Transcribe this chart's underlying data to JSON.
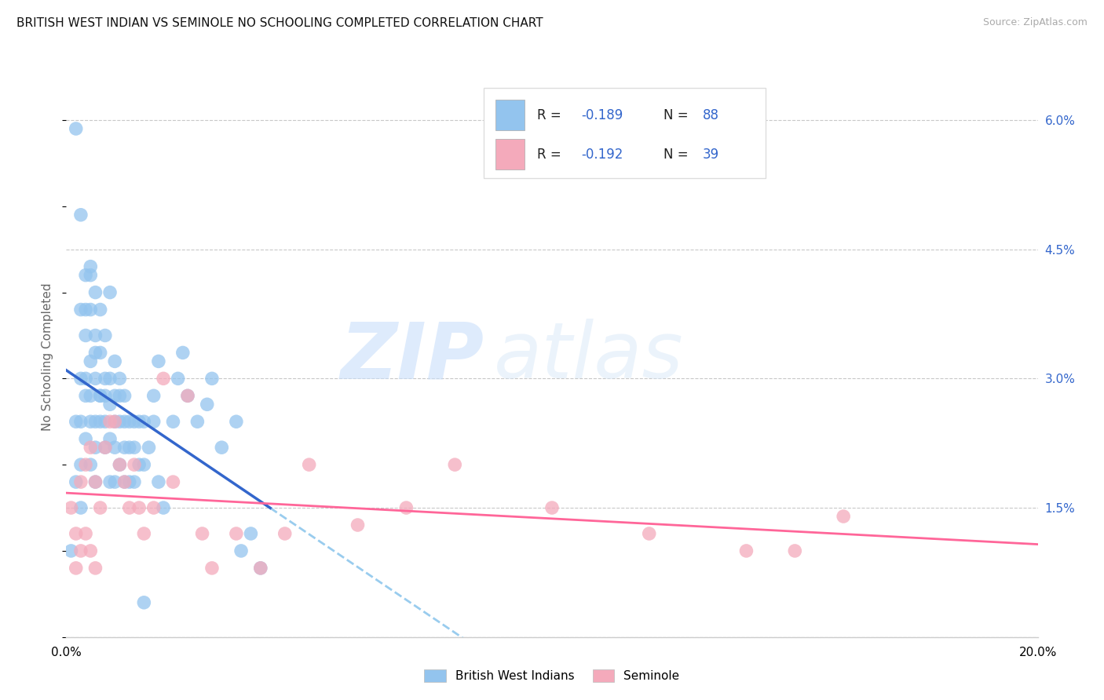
{
  "title": "BRITISH WEST INDIAN VS SEMINOLE NO SCHOOLING COMPLETED CORRELATION CHART",
  "source": "Source: ZipAtlas.com",
  "ylabel": "No Schooling Completed",
  "xlim": [
    0.0,
    0.2
  ],
  "ylim": [
    0.0,
    0.065
  ],
  "yticks_right": [
    0.0,
    0.015,
    0.03,
    0.045,
    0.06
  ],
  "yticklabels_right": [
    "",
    "1.5%",
    "3.0%",
    "4.5%",
    "6.0%"
  ],
  "grid_color": "#c8c8c8",
  "background_color": "#ffffff",
  "blue_color": "#93C4EE",
  "pink_color": "#F4AABB",
  "blue_line_color": "#3366CC",
  "pink_line_color": "#FF6699",
  "dashed_line_color": "#99CCEE",
  "legend_label1": "British West Indians",
  "legend_label2": "Seminole",
  "watermark_zip": "ZIP",
  "watermark_atlas": "atlas",
  "blue_x": [
    0.001,
    0.002,
    0.002,
    0.003,
    0.003,
    0.003,
    0.003,
    0.003,
    0.004,
    0.004,
    0.004,
    0.004,
    0.004,
    0.004,
    0.005,
    0.005,
    0.005,
    0.005,
    0.005,
    0.005,
    0.006,
    0.006,
    0.006,
    0.006,
    0.006,
    0.006,
    0.007,
    0.007,
    0.007,
    0.007,
    0.008,
    0.008,
    0.008,
    0.008,
    0.008,
    0.009,
    0.009,
    0.009,
    0.009,
    0.01,
    0.01,
    0.01,
    0.01,
    0.01,
    0.011,
    0.011,
    0.011,
    0.012,
    0.012,
    0.012,
    0.012,
    0.013,
    0.013,
    0.013,
    0.014,
    0.014,
    0.014,
    0.015,
    0.015,
    0.016,
    0.016,
    0.017,
    0.018,
    0.018,
    0.019,
    0.019,
    0.02,
    0.022,
    0.023,
    0.024,
    0.025,
    0.027,
    0.029,
    0.03,
    0.032,
    0.035,
    0.036,
    0.038,
    0.04,
    0.002,
    0.003,
    0.005,
    0.006,
    0.007,
    0.009,
    0.011,
    0.016
  ],
  "blue_y": [
    0.01,
    0.018,
    0.025,
    0.038,
    0.03,
    0.025,
    0.02,
    0.015,
    0.042,
    0.035,
    0.028,
    0.023,
    0.038,
    0.03,
    0.042,
    0.038,
    0.032,
    0.028,
    0.025,
    0.02,
    0.04,
    0.035,
    0.03,
    0.025,
    0.022,
    0.018,
    0.038,
    0.033,
    0.028,
    0.025,
    0.035,
    0.03,
    0.028,
    0.025,
    0.022,
    0.03,
    0.027,
    0.023,
    0.018,
    0.032,
    0.028,
    0.025,
    0.022,
    0.018,
    0.028,
    0.025,
    0.02,
    0.028,
    0.025,
    0.022,
    0.018,
    0.025,
    0.022,
    0.018,
    0.025,
    0.022,
    0.018,
    0.025,
    0.02,
    0.025,
    0.02,
    0.022,
    0.028,
    0.025,
    0.032,
    0.018,
    0.015,
    0.025,
    0.03,
    0.033,
    0.028,
    0.025,
    0.027,
    0.03,
    0.022,
    0.025,
    0.01,
    0.012,
    0.008,
    0.059,
    0.049,
    0.043,
    0.033,
    0.028,
    0.04,
    0.03,
    0.004
  ],
  "pink_x": [
    0.001,
    0.002,
    0.002,
    0.003,
    0.003,
    0.004,
    0.004,
    0.005,
    0.005,
    0.006,
    0.006,
    0.007,
    0.008,
    0.009,
    0.01,
    0.011,
    0.012,
    0.013,
    0.014,
    0.015,
    0.016,
    0.018,
    0.02,
    0.022,
    0.025,
    0.028,
    0.03,
    0.035,
    0.04,
    0.045,
    0.05,
    0.06,
    0.07,
    0.08,
    0.1,
    0.12,
    0.14,
    0.15,
    0.16
  ],
  "pink_y": [
    0.015,
    0.012,
    0.008,
    0.018,
    0.01,
    0.02,
    0.012,
    0.022,
    0.01,
    0.018,
    0.008,
    0.015,
    0.022,
    0.025,
    0.025,
    0.02,
    0.018,
    0.015,
    0.02,
    0.015,
    0.012,
    0.015,
    0.03,
    0.018,
    0.028,
    0.012,
    0.008,
    0.012,
    0.008,
    0.012,
    0.02,
    0.013,
    0.015,
    0.02,
    0.015,
    0.012,
    0.01,
    0.01,
    0.014
  ]
}
